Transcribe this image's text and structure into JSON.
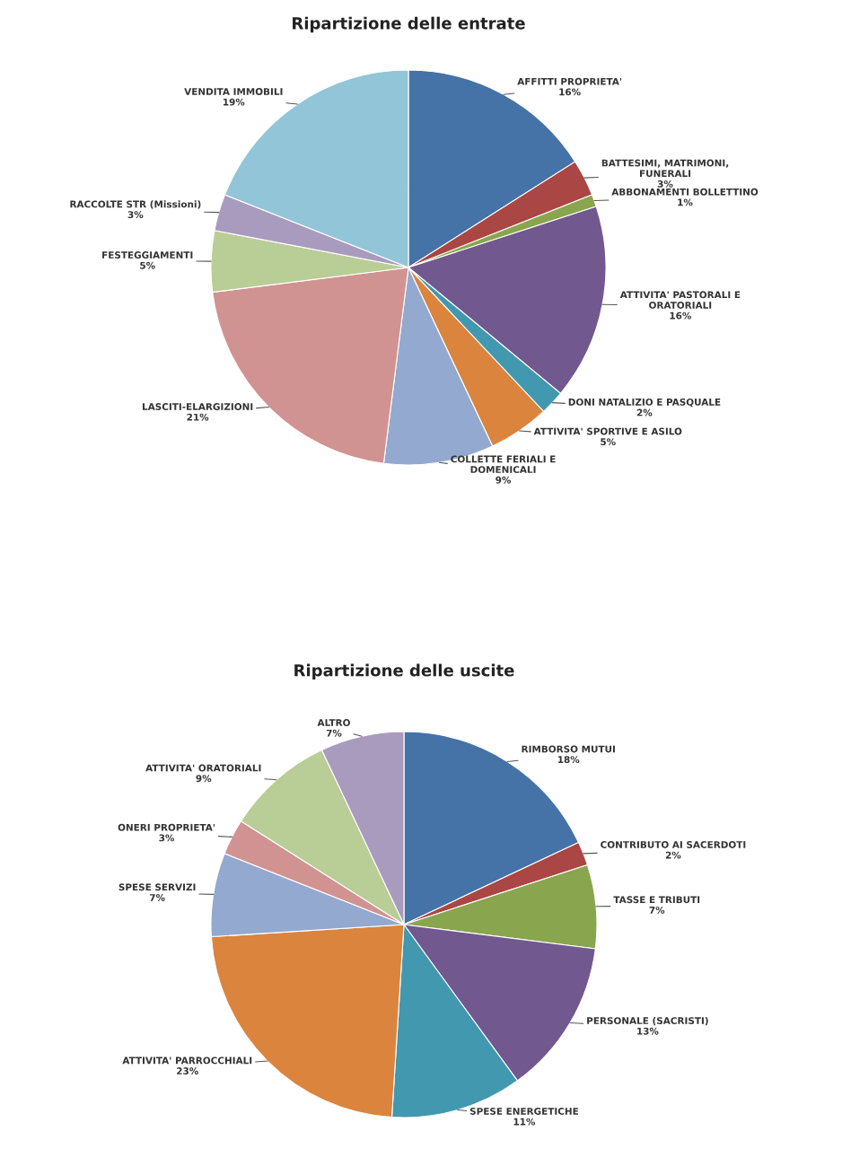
{
  "chart_data": [
    {
      "type": "pie",
      "title": "Ripartizione delle entrate",
      "categories": [
        "AFFITTI PROPRIETA'",
        "BATTESIMI, MATRIMONI,\nFUNERALI",
        "ABBONAMENTI BOLLETTINO",
        "ATTIVITA' PASTORALI E\nORATORIALI",
        "DONI NATALIZIO E PASQUALE",
        "ATTIVITA' SPORTIVE E ASILO",
        "COLLETTE FERIALI E\nDOMENICALI",
        "LASCITI-ELARGIZIONI",
        "FESTEGGIAMENTI",
        "RACCOLTE STR (Missioni)",
        "VENDITA IMMOBILI"
      ],
      "values": [
        16,
        3,
        1,
        16,
        2,
        5,
        9,
        21,
        5,
        3,
        19
      ],
      "value_labels": [
        "16%",
        "3%",
        "1%",
        "16%",
        "2%",
        "5%",
        "9%",
        "21%",
        "5%",
        "3%",
        "19%"
      ],
      "colors": [
        "#4572a7",
        "#aa4643",
        "#89a54e",
        "#71588f",
        "#4198af",
        "#db843d",
        "#93a9cf",
        "#d19392",
        "#b9cd96",
        "#a99bbd",
        "#92c5d8"
      ]
    },
    {
      "type": "pie",
      "title": "Ripartizione delle uscite",
      "categories": [
        "RIMBORSO MUTUI",
        "CONTRIBUTO AI SACERDOTI",
        "TASSE E TRIBUTI",
        "PERSONALE (SACRISTI)",
        "SPESE ENERGETICHE",
        "ATTIVITA' PARROCCHIALI",
        "SPESE SERVIZI",
        "ONERI PROPRIETA'",
        "ATTIVITA' ORATORIALI",
        "ALTRO"
      ],
      "values": [
        18,
        2,
        7,
        13,
        11,
        23,
        7,
        3,
        9,
        7
      ],
      "value_labels": [
        "18%",
        "2%",
        "7%",
        "13%",
        "11%",
        "23%",
        "7%",
        "3%",
        "9%",
        "7%"
      ],
      "colors": [
        "#4572a7",
        "#aa4643",
        "#89a54e",
        "#71588f",
        "#4198af",
        "#db843d",
        "#93a9cf",
        "#d19392",
        "#b9cd96",
        "#a99bbd"
      ]
    }
  ]
}
